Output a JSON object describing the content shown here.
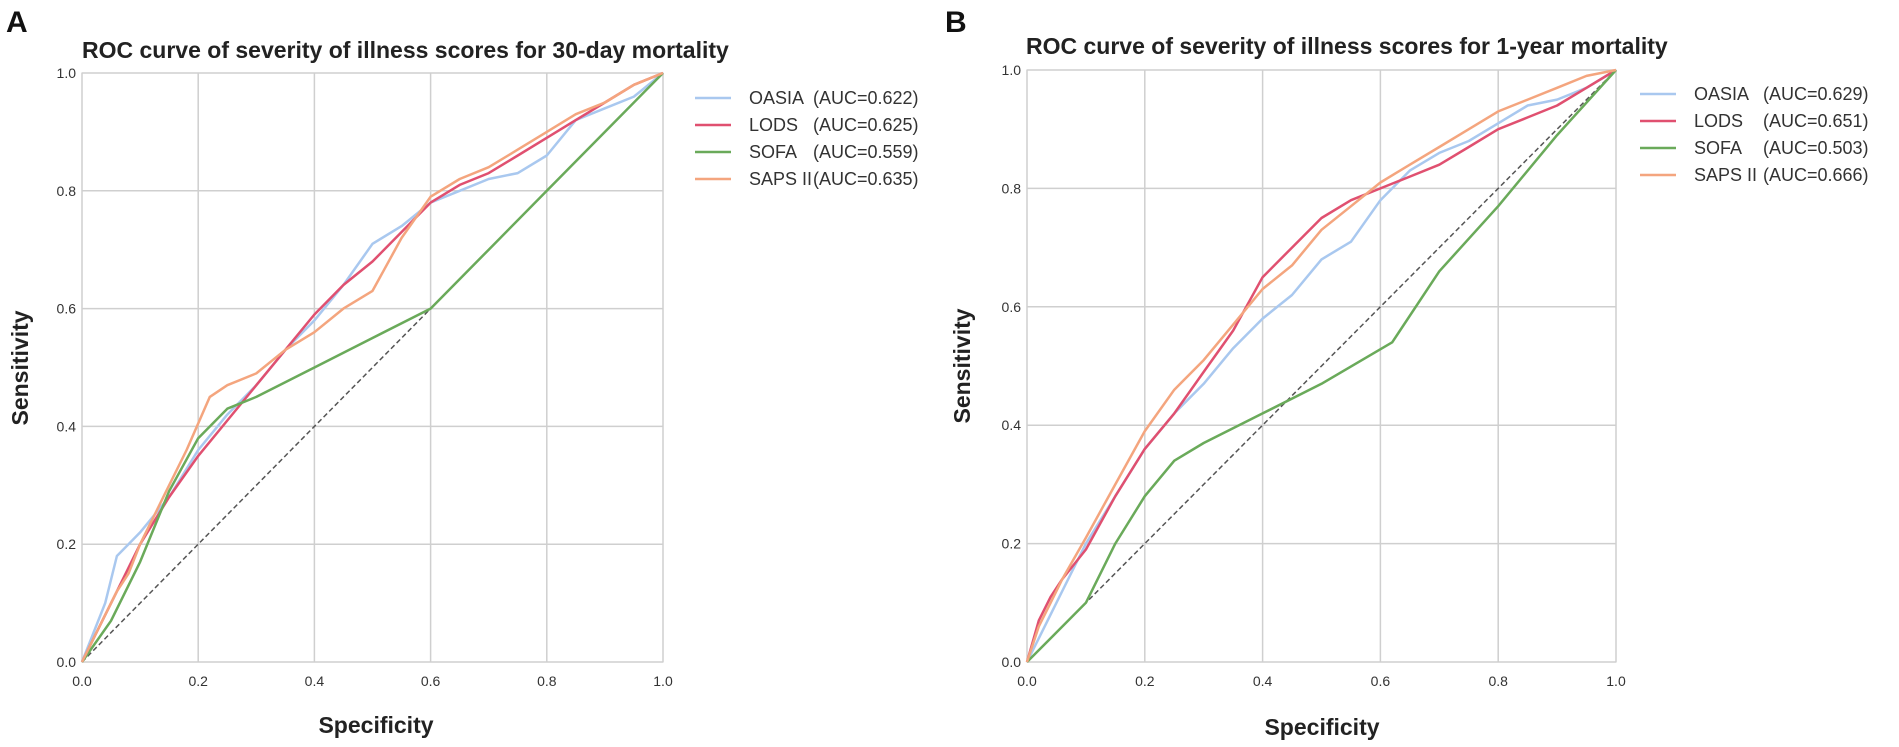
{
  "chart_data": [
    {
      "type": "line",
      "panel": "A",
      "title": "ROC curve of severity of illness scores for 30-day mortality",
      "xlabel": "Specificity",
      "ylabel": "Sensitivity",
      "xlim": [
        0,
        1
      ],
      "ylim": [
        0,
        1
      ],
      "xticks": [
        "0.0",
        "0.2",
        "0.4",
        "0.6",
        "0.8",
        "1.0"
      ],
      "yticks": [
        "0.0",
        "0.2",
        "0.4",
        "0.6",
        "0.8",
        "1.0"
      ],
      "grid": true,
      "legend_position": "right",
      "reference_line": {
        "x": [
          0,
          1
        ],
        "y": [
          0,
          1
        ],
        "color": "#555555"
      },
      "series": [
        {
          "name": "OASIA",
          "auc_label": "(AUC=0.622)",
          "color": "#a9c8ef",
          "x": [
            0,
            0.02,
            0.04,
            0.06,
            0.08,
            0.1,
            0.15,
            0.2,
            0.25,
            0.3,
            0.35,
            0.4,
            0.45,
            0.5,
            0.55,
            0.6,
            0.65,
            0.7,
            0.75,
            0.8,
            0.85,
            0.9,
            0.95,
            1.0
          ],
          "y": [
            0,
            0.05,
            0.1,
            0.18,
            0.2,
            0.22,
            0.28,
            0.36,
            0.42,
            0.47,
            0.53,
            0.58,
            0.64,
            0.71,
            0.74,
            0.78,
            0.8,
            0.82,
            0.83,
            0.86,
            0.92,
            0.94,
            0.96,
            1.0
          ]
        },
        {
          "name": "LODS",
          "auc_label": "(AUC=0.625)",
          "color": "#e05070",
          "x": [
            0,
            0.02,
            0.04,
            0.06,
            0.08,
            0.1,
            0.15,
            0.2,
            0.25,
            0.3,
            0.35,
            0.4,
            0.45,
            0.5,
            0.55,
            0.6,
            0.65,
            0.7,
            0.75,
            0.8,
            0.85,
            0.9,
            0.95,
            1.0
          ],
          "y": [
            0,
            0.04,
            0.08,
            0.12,
            0.16,
            0.2,
            0.28,
            0.35,
            0.41,
            0.47,
            0.53,
            0.59,
            0.64,
            0.68,
            0.73,
            0.78,
            0.81,
            0.83,
            0.86,
            0.89,
            0.92,
            0.95,
            0.98,
            1.0
          ]
        },
        {
          "name": "SOFA",
          "auc_label": "(AUC=0.559)",
          "color": "#6aaa5a",
          "x": [
            0,
            0.05,
            0.1,
            0.15,
            0.2,
            0.25,
            0.3,
            0.4,
            0.5,
            0.6,
            0.7,
            0.8,
            0.9,
            1.0
          ],
          "y": [
            0,
            0.07,
            0.17,
            0.29,
            0.38,
            0.43,
            0.45,
            0.5,
            0.55,
            0.6,
            0.7,
            0.8,
            0.9,
            1.0
          ]
        },
        {
          "name": "SAPS II",
          "auc_label": "(AUC=0.635)",
          "color": "#f4a57e",
          "x": [
            0,
            0.02,
            0.04,
            0.06,
            0.08,
            0.1,
            0.14,
            0.18,
            0.22,
            0.25,
            0.3,
            0.35,
            0.4,
            0.45,
            0.5,
            0.55,
            0.6,
            0.65,
            0.7,
            0.75,
            0.8,
            0.85,
            0.9,
            0.95,
            1.0
          ],
          "y": [
            0,
            0.04,
            0.08,
            0.12,
            0.15,
            0.2,
            0.28,
            0.36,
            0.45,
            0.47,
            0.49,
            0.53,
            0.56,
            0.6,
            0.63,
            0.72,
            0.79,
            0.82,
            0.84,
            0.87,
            0.9,
            0.93,
            0.95,
            0.98,
            1.0
          ]
        }
      ]
    },
    {
      "type": "line",
      "panel": "B",
      "title": "ROC curve of severity of illness scores for 1-year mortality",
      "xlabel": "Specificity",
      "ylabel": "Sensitivity",
      "xlim": [
        0,
        1
      ],
      "ylim": [
        0,
        1
      ],
      "xticks": [
        "0.0",
        "0.2",
        "0.4",
        "0.6",
        "0.8",
        "1.0"
      ],
      "yticks": [
        "0.0",
        "0.2",
        "0.4",
        "0.6",
        "0.8",
        "1.0"
      ],
      "grid": true,
      "legend_position": "right",
      "reference_line": {
        "x": [
          0,
          1
        ],
        "y": [
          0,
          1
        ],
        "color": "#555555"
      },
      "series": [
        {
          "name": "OASIA",
          "auc_label": "(AUC=0.629)",
          "color": "#a9c8ef",
          "x": [
            0,
            0.02,
            0.04,
            0.06,
            0.1,
            0.15,
            0.2,
            0.25,
            0.3,
            0.35,
            0.4,
            0.45,
            0.5,
            0.55,
            0.6,
            0.65,
            0.7,
            0.75,
            0.8,
            0.85,
            0.9,
            0.95,
            1.0
          ],
          "y": [
            0,
            0.04,
            0.08,
            0.12,
            0.2,
            0.28,
            0.36,
            0.42,
            0.47,
            0.53,
            0.58,
            0.62,
            0.68,
            0.71,
            0.78,
            0.83,
            0.86,
            0.88,
            0.91,
            0.94,
            0.95,
            0.97,
            1.0
          ]
        },
        {
          "name": "LODS",
          "auc_label": "(AUC=0.651)",
          "color": "#e05070",
          "x": [
            0,
            0.02,
            0.04,
            0.06,
            0.1,
            0.15,
            0.2,
            0.25,
            0.3,
            0.35,
            0.4,
            0.45,
            0.5,
            0.55,
            0.6,
            0.65,
            0.7,
            0.75,
            0.8,
            0.85,
            0.9,
            0.95,
            1.0
          ],
          "y": [
            0,
            0.07,
            0.11,
            0.14,
            0.19,
            0.28,
            0.36,
            0.42,
            0.49,
            0.56,
            0.65,
            0.7,
            0.75,
            0.78,
            0.8,
            0.82,
            0.84,
            0.87,
            0.9,
            0.92,
            0.94,
            0.97,
            1.0
          ]
        },
        {
          "name": "SOFA",
          "auc_label": "(AUC=0.503)",
          "color": "#6aaa5a",
          "x": [
            0,
            0.05,
            0.1,
            0.15,
            0.2,
            0.25,
            0.3,
            0.4,
            0.5,
            0.62,
            0.7,
            0.8,
            0.9,
            1.0
          ],
          "y": [
            0,
            0.05,
            0.1,
            0.2,
            0.28,
            0.34,
            0.37,
            0.42,
            0.47,
            0.54,
            0.66,
            0.77,
            0.89,
            1.0
          ]
        },
        {
          "name": "SAPS II",
          "auc_label": "(AUC=0.666)",
          "color": "#f4a57e",
          "x": [
            0,
            0.02,
            0.04,
            0.06,
            0.1,
            0.15,
            0.2,
            0.25,
            0.3,
            0.35,
            0.4,
            0.45,
            0.5,
            0.55,
            0.6,
            0.65,
            0.7,
            0.75,
            0.8,
            0.85,
            0.9,
            0.95,
            1.0
          ],
          "y": [
            0,
            0.06,
            0.1,
            0.14,
            0.21,
            0.3,
            0.39,
            0.46,
            0.51,
            0.57,
            0.63,
            0.67,
            0.73,
            0.77,
            0.81,
            0.84,
            0.87,
            0.9,
            0.93,
            0.95,
            0.97,
            0.99,
            1.0
          ]
        }
      ]
    }
  ]
}
